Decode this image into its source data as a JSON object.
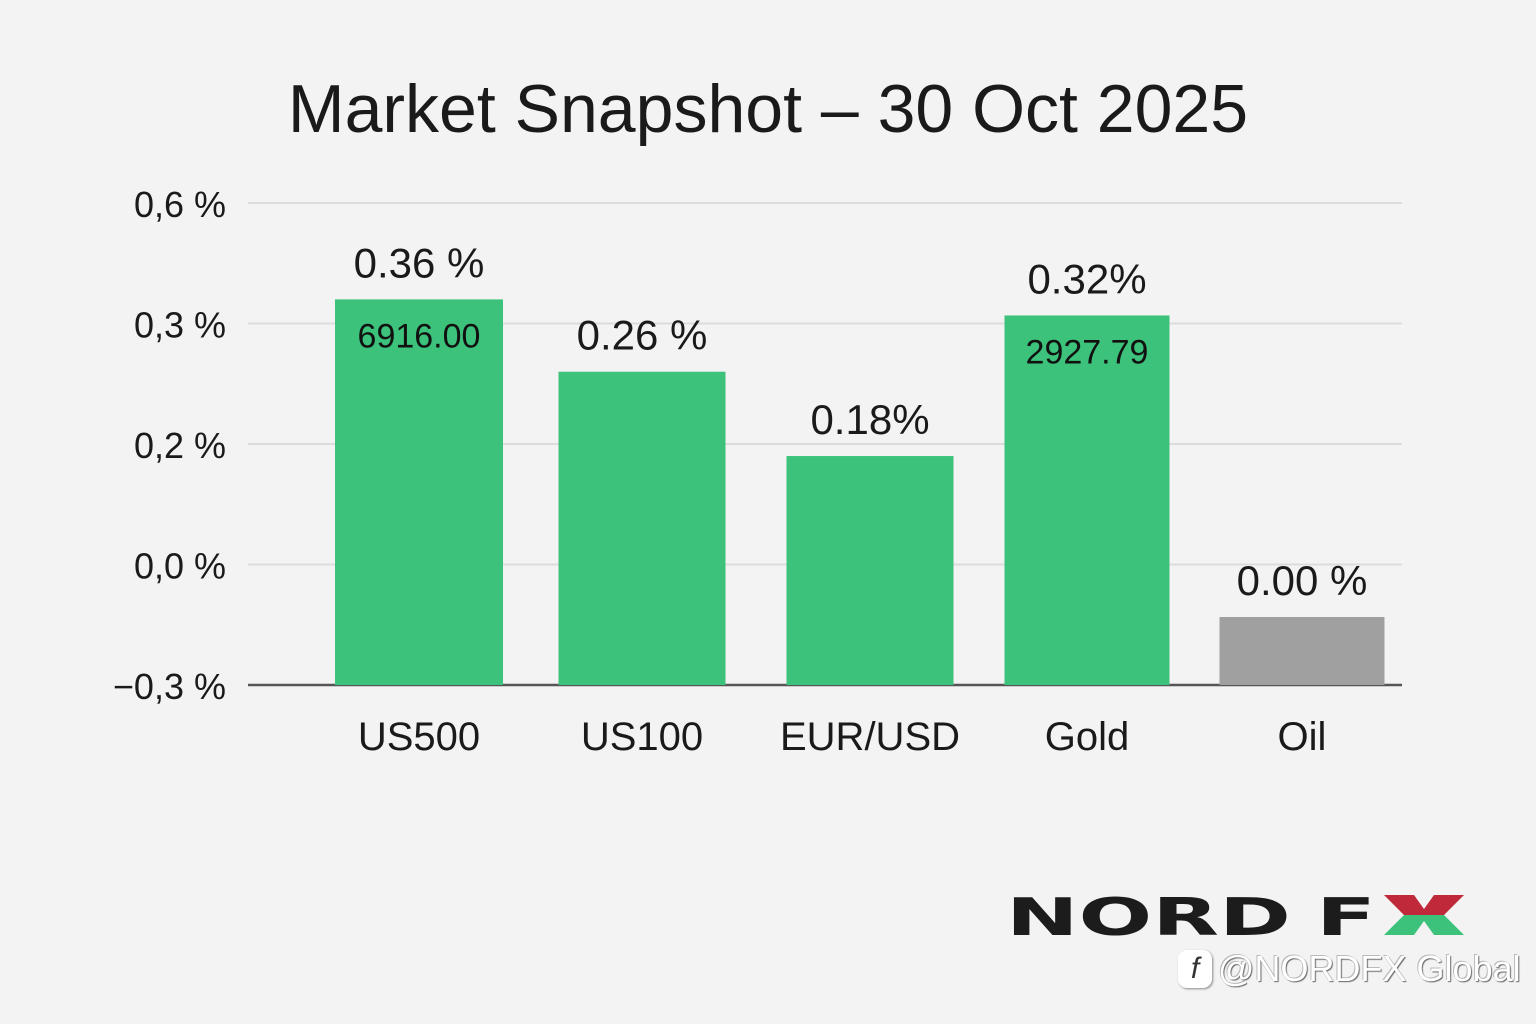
{
  "chart_data": {
    "type": "bar",
    "title": "Market Snapshot – 30 Oct 2025",
    "xlabel": "",
    "ylabel": "",
    "categories": [
      "US500",
      "US100",
      "EUR/USD",
      "Gold",
      "Oil"
    ],
    "values": [
      0.36,
      0.26,
      0.18,
      0.32,
      0.0
    ],
    "value_labels": [
      "0.36 %",
      "0.26 %",
      "0.18%",
      "0.32%",
      "0.00 %"
    ],
    "inner_labels": [
      "6916.00",
      "",
      "",
      "2927.79",
      ""
    ],
    "bar_colors": [
      "#3cc27a",
      "#3cc27a",
      "#3cc27a",
      "#3cc27a",
      "#a0a0a0"
    ],
    "y_ticks": [
      -0.3,
      0.0,
      0.2,
      0.3,
      0.6
    ],
    "y_tick_labels": [
      "−0,3 %",
      "0,0 %",
      "0,2 %",
      "0,3 %",
      "0,6 %"
    ],
    "ylim": [
      -0.3,
      0.6
    ],
    "grid": true,
    "legend": "none"
  },
  "branding": {
    "logo_text": "NORD FX",
    "social_handle": "@NORDFX Global",
    "social_icon": "f"
  }
}
